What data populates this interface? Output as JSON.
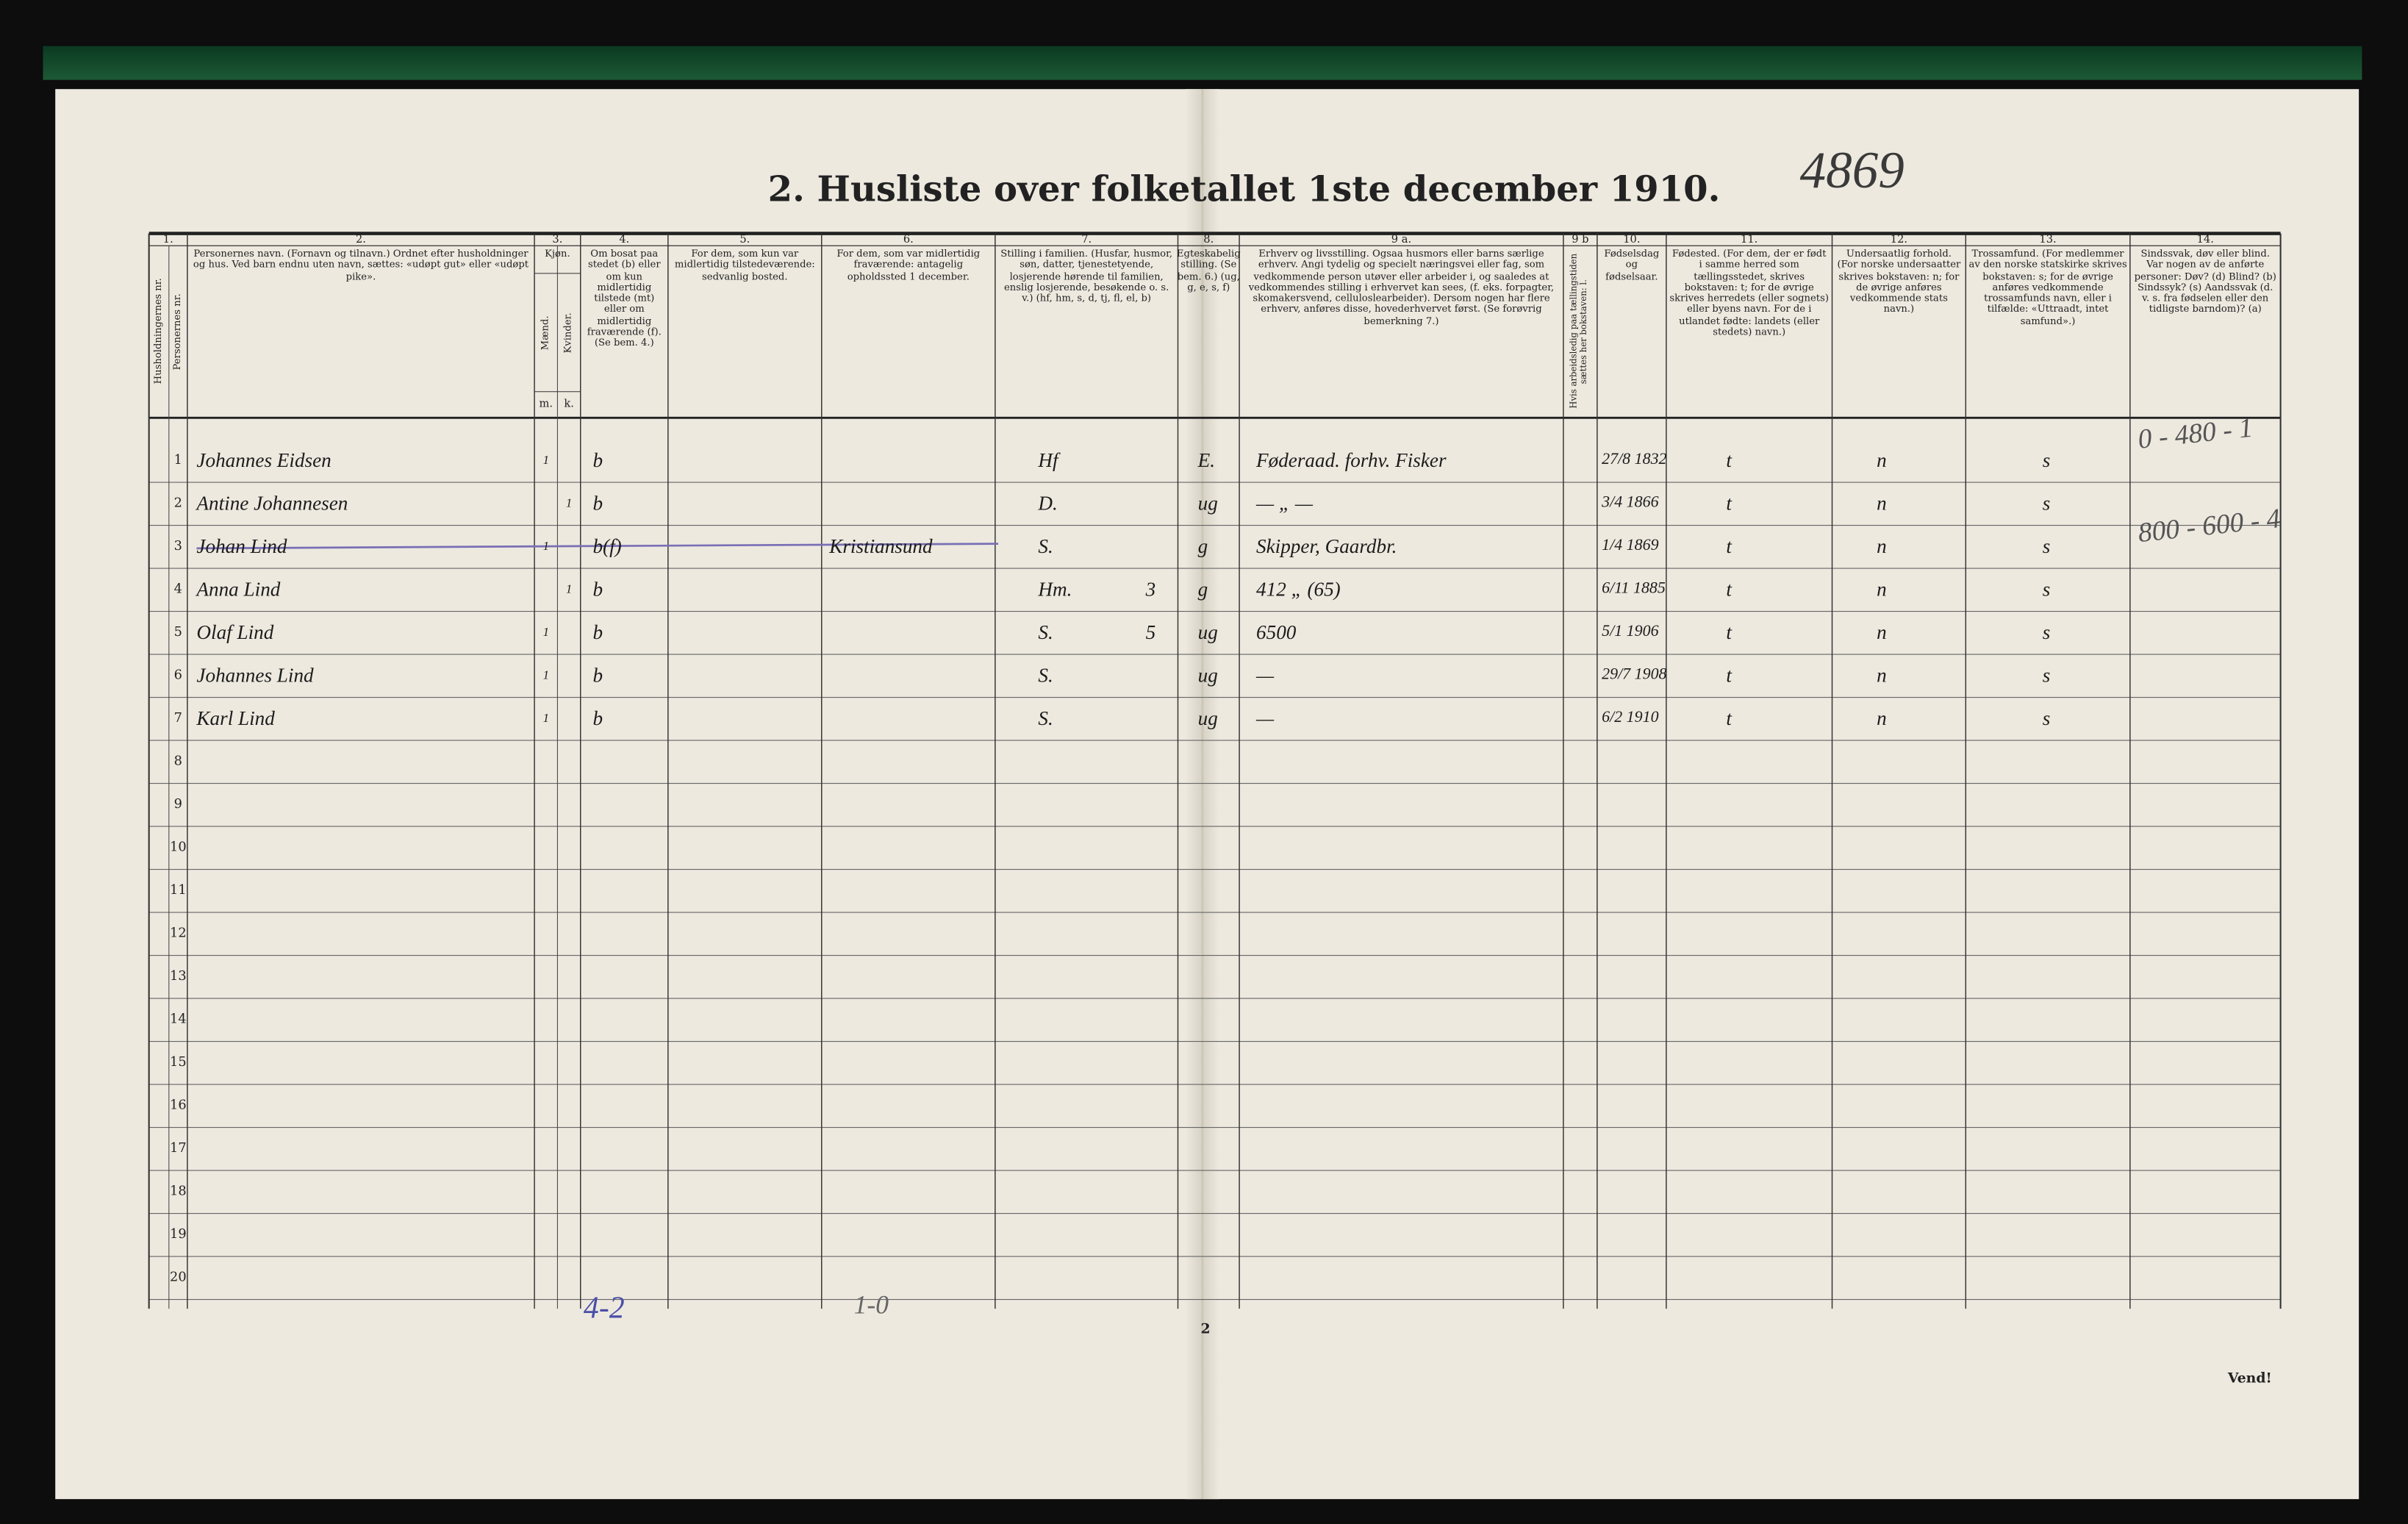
{
  "header": {
    "title": "2.  Husliste over folketallet 1ste december 1910.",
    "archive_number": "4869"
  },
  "columns": [
    {
      "number": "1.",
      "texts": [
        "Husholdningernes nr.",
        "Personernes nr."
      ]
    },
    {
      "number": "2.",
      "text": "Personernes navn. (Fornavn og tilnavn.) Ordnet efter husholdninger og hus. Ved barn endnu uten navn, sættes: «udøpt gut» eller «udøpt pike»."
    },
    {
      "number": "3.",
      "text": "Kjøn.",
      "sub": [
        "Mænd.",
        "Kvinder."
      ],
      "sub_short": [
        "m.",
        "k."
      ]
    },
    {
      "number": "4.",
      "text": "Om bosat paa stedet (b) eller om kun midlertidig tilstede (mt) eller om midlertidig fraværende (f). (Se bem. 4.)"
    },
    {
      "number": "5.",
      "text": "For dem, som kun var midlertidig tilstedeværende: sedvanlig bosted."
    },
    {
      "number": "6.",
      "text": "For dem, som var midlertidig fraværende: antagelig opholdssted 1 december."
    },
    {
      "number": "7.",
      "text": "Stilling i familien. (Husfar, husmor, søn, datter, tjenestetyende, losjerende hørende til familien, enslig losjerende, besøkende o. s. v.) (hf, hm, s, d, tj, fl, el, b)"
    },
    {
      "number": "8.",
      "text": "Egteskabelig stilling. (Se bem. 6.) (ug, g, e, s, f)"
    },
    {
      "number": "9 a.",
      "text": "Erhverv og livsstilling. Ogsaa husmors eller barns særlige erhverv. Angi tydelig og specielt næringsvei eller fag, som vedkommende person utøver eller arbeider i, og saaledes at vedkommendes stilling i erhvervet kan sees, (f. eks. forpagter, skomakersvend, celluloslearbeider). Dersom nogen har flere erhverv, anføres disse, hovederhvervet først. (Se forøvrig bemerkning 7.)"
    },
    {
      "number": "9 b",
      "text": "Hvis arbeidsledig paa tællingstiden sættes her bokstaven: l."
    },
    {
      "number": "10.",
      "text": "Fødselsdag og fødselsaar."
    },
    {
      "number": "11.",
      "text": "Fødested. (For dem, der er født i samme herred som tællingsstedet, skrives bokstaven: t; for de øvrige skrives herredets (eller sognets) eller byens navn. For de i utlandet fødte: landets (eller stedets) navn.)"
    },
    {
      "number": "12.",
      "text": "Undersaatlig forhold. (For norske undersaatter skrives bokstaven: n; for de øvrige anføres vedkommende stats navn.)"
    },
    {
      "number": "13.",
      "text": "Trossamfund. (For medlemmer av den norske statskirke skrives bokstaven: s; for de øvrige anføres vedkommende trossamfunds navn, eller i tilfælde: «Uttraadt, intet samfund».)"
    },
    {
      "number": "14.",
      "text": "Sindssvak, døv eller blind. Var nogen av de anførte personer: Døv? (d) Blind? (b) Sindssyk? (s) Aandssvak (d. v. s. fra fødselen eller den tidligste barndom)? (a)"
    }
  ],
  "rows": [
    {
      "number": "1",
      "name": "Johannes Eidsen",
      "m": "1",
      "residence": "b",
      "family_position": "Hf",
      "marital_status": "E.",
      "occupation": "Føderaad. forhv. Fisker",
      "birth_date": "27/8 1832",
      "birthplace": "t",
      "citizenship": "n",
      "religion": "s"
    },
    {
      "number": "2",
      "name": "Antine Johannesen",
      "k": "1",
      "residence": "b",
      "family_position": "D.",
      "marital_status": "ug",
      "occupation": "— „ —",
      "birth_date": "3/4 1866",
      "birthplace": "t",
      "citizenship": "n",
      "religion": "s"
    },
    {
      "number": "3",
      "name": "Johan Lind",
      "struck_through": true,
      "m": "1",
      "residence": "b(f)",
      "temporary_location": "Kristiansund",
      "family_position": "S.",
      "marital_status": "g",
      "occupation": "Skipper, Gaardbr.",
      "birth_date": "1/4 1869",
      "birthplace": "t",
      "citizenship": "n",
      "religion": "s"
    },
    {
      "number": "4",
      "name": "Anna Lind",
      "k": "1",
      "residence": "b",
      "family_position": "Hm.",
      "family_note": "3",
      "marital_status": "g",
      "occupation": "412 „ (65)",
      "birth_date": "6/11 1885",
      "birthplace": "t",
      "citizenship": "n",
      "religion": "s"
    },
    {
      "number": "5",
      "name": "Olaf Lind",
      "m": "1",
      "residence": "b",
      "family_position": "S.",
      "family_note": "5",
      "marital_status": "ug",
      "occupation": "6500",
      "birth_date": "5/1 1906",
      "birthplace": "t",
      "citizenship": "n",
      "religion": "s"
    },
    {
      "number": "6",
      "name": "Johannes Lind",
      "m": "1",
      "residence": "b",
      "family_position": "S.",
      "marital_status": "ug",
      "occupation": "—",
      "birth_date": "29/7 1908",
      "birthplace": "t",
      "citizenship": "n",
      "religion": "s"
    },
    {
      "number": "7",
      "name": "Karl Lind",
      "m": "1",
      "residence": "b",
      "family_position": "S.",
      "marital_status": "ug",
      "occupation": "—",
      "birth_date": "6/2 1910",
      "birthplace": "t",
      "citizenship": "n",
      "religion": "s"
    },
    {
      "number": "8"
    },
    {
      "number": "9"
    },
    {
      "number": "10"
    },
    {
      "number": "11"
    },
    {
      "number": "12"
    },
    {
      "number": "13"
    },
    {
      "number": "14"
    },
    {
      "number": "15"
    },
    {
      "number": "16"
    },
    {
      "number": "17"
    },
    {
      "number": "18"
    },
    {
      "number": "19"
    },
    {
      "number": "20"
    }
  ],
  "margin_notes": [
    "0 - 480 - 1",
    "800 - 600 - 4"
  ],
  "totals": {
    "residence": "4-2",
    "temporary": "1-0"
  },
  "footer": {
    "page_number": "2",
    "turn": "Vend!"
  }
}
